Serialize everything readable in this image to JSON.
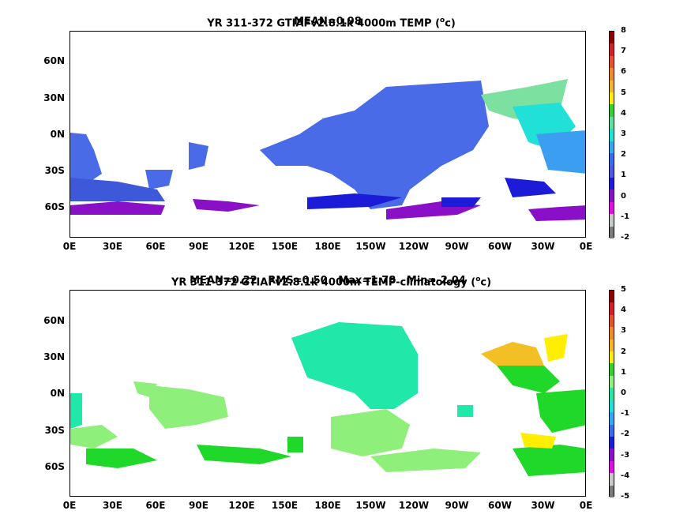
{
  "panel1": {
    "title_line1": "YR 311-372 GTIAFv2.8.1k 4000m TEMP (",
    "title_unit": "o",
    "title_end": "c)",
    "title_line2": "MEAN=0.98",
    "lat_labels": [
      "60N",
      "30N",
      "0N",
      "30S",
      "60S"
    ],
    "lon_labels": [
      "0E",
      "30E",
      "60E",
      "90E",
      "120E",
      "150E",
      "180E",
      "150W",
      "120W",
      "90W",
      "60W",
      "30W",
      "0E"
    ],
    "colorbar": {
      "ticks": [
        "8",
        "7",
        "6",
        "5",
        "4",
        "3",
        "2",
        "1",
        "0",
        "-1",
        "-2"
      ],
      "colors": [
        "#8b0000",
        "#d0202a",
        "#e8522a",
        "#f08a26",
        "#f2b824",
        "#ffee00",
        "#34d12a",
        "#5ae0a0",
        "#20e0d8",
        "#34a8f0",
        "#3570e8",
        "#4a5be0",
        "#1b1bd8",
        "#8a10c8",
        "#e010e0",
        "#c8c8c8",
        "#7a7a7a"
      ]
    }
  },
  "panel2": {
    "title_line1": "YR 311-372 GTIAFv2.8.1k 4000m TEMP-climatology (",
    "title_unit": "o",
    "title_end": "c)",
    "title_line2": "MEAN=0.22   RMS=0.50   Max=1.78   Min=-2.04",
    "lat_labels": [
      "60N",
      "30N",
      "0N",
      "30S",
      "60S"
    ],
    "lon_labels": [
      "0E",
      "30E",
      "60E",
      "90E",
      "120E",
      "150E",
      "180E",
      "150W",
      "120W",
      "90W",
      "60W",
      "30W",
      "0E"
    ],
    "colorbar": {
      "ticks": [
        "5",
        "4",
        "3",
        "2",
        "1",
        "0",
        "-1",
        "-2",
        "-3",
        "-4",
        "-5"
      ],
      "colors": [
        "#8b0000",
        "#d0202a",
        "#e8522a",
        "#f08a26",
        "#f2b824",
        "#ffee00",
        "#34d12a",
        "#8ef07a",
        "#20e8a8",
        "#20e0d8",
        "#34a8f0",
        "#3570e8",
        "#1b1bd8",
        "#8a10c8",
        "#e010e0",
        "#c8c8c8",
        "#7a7a7a"
      ]
    }
  }
}
